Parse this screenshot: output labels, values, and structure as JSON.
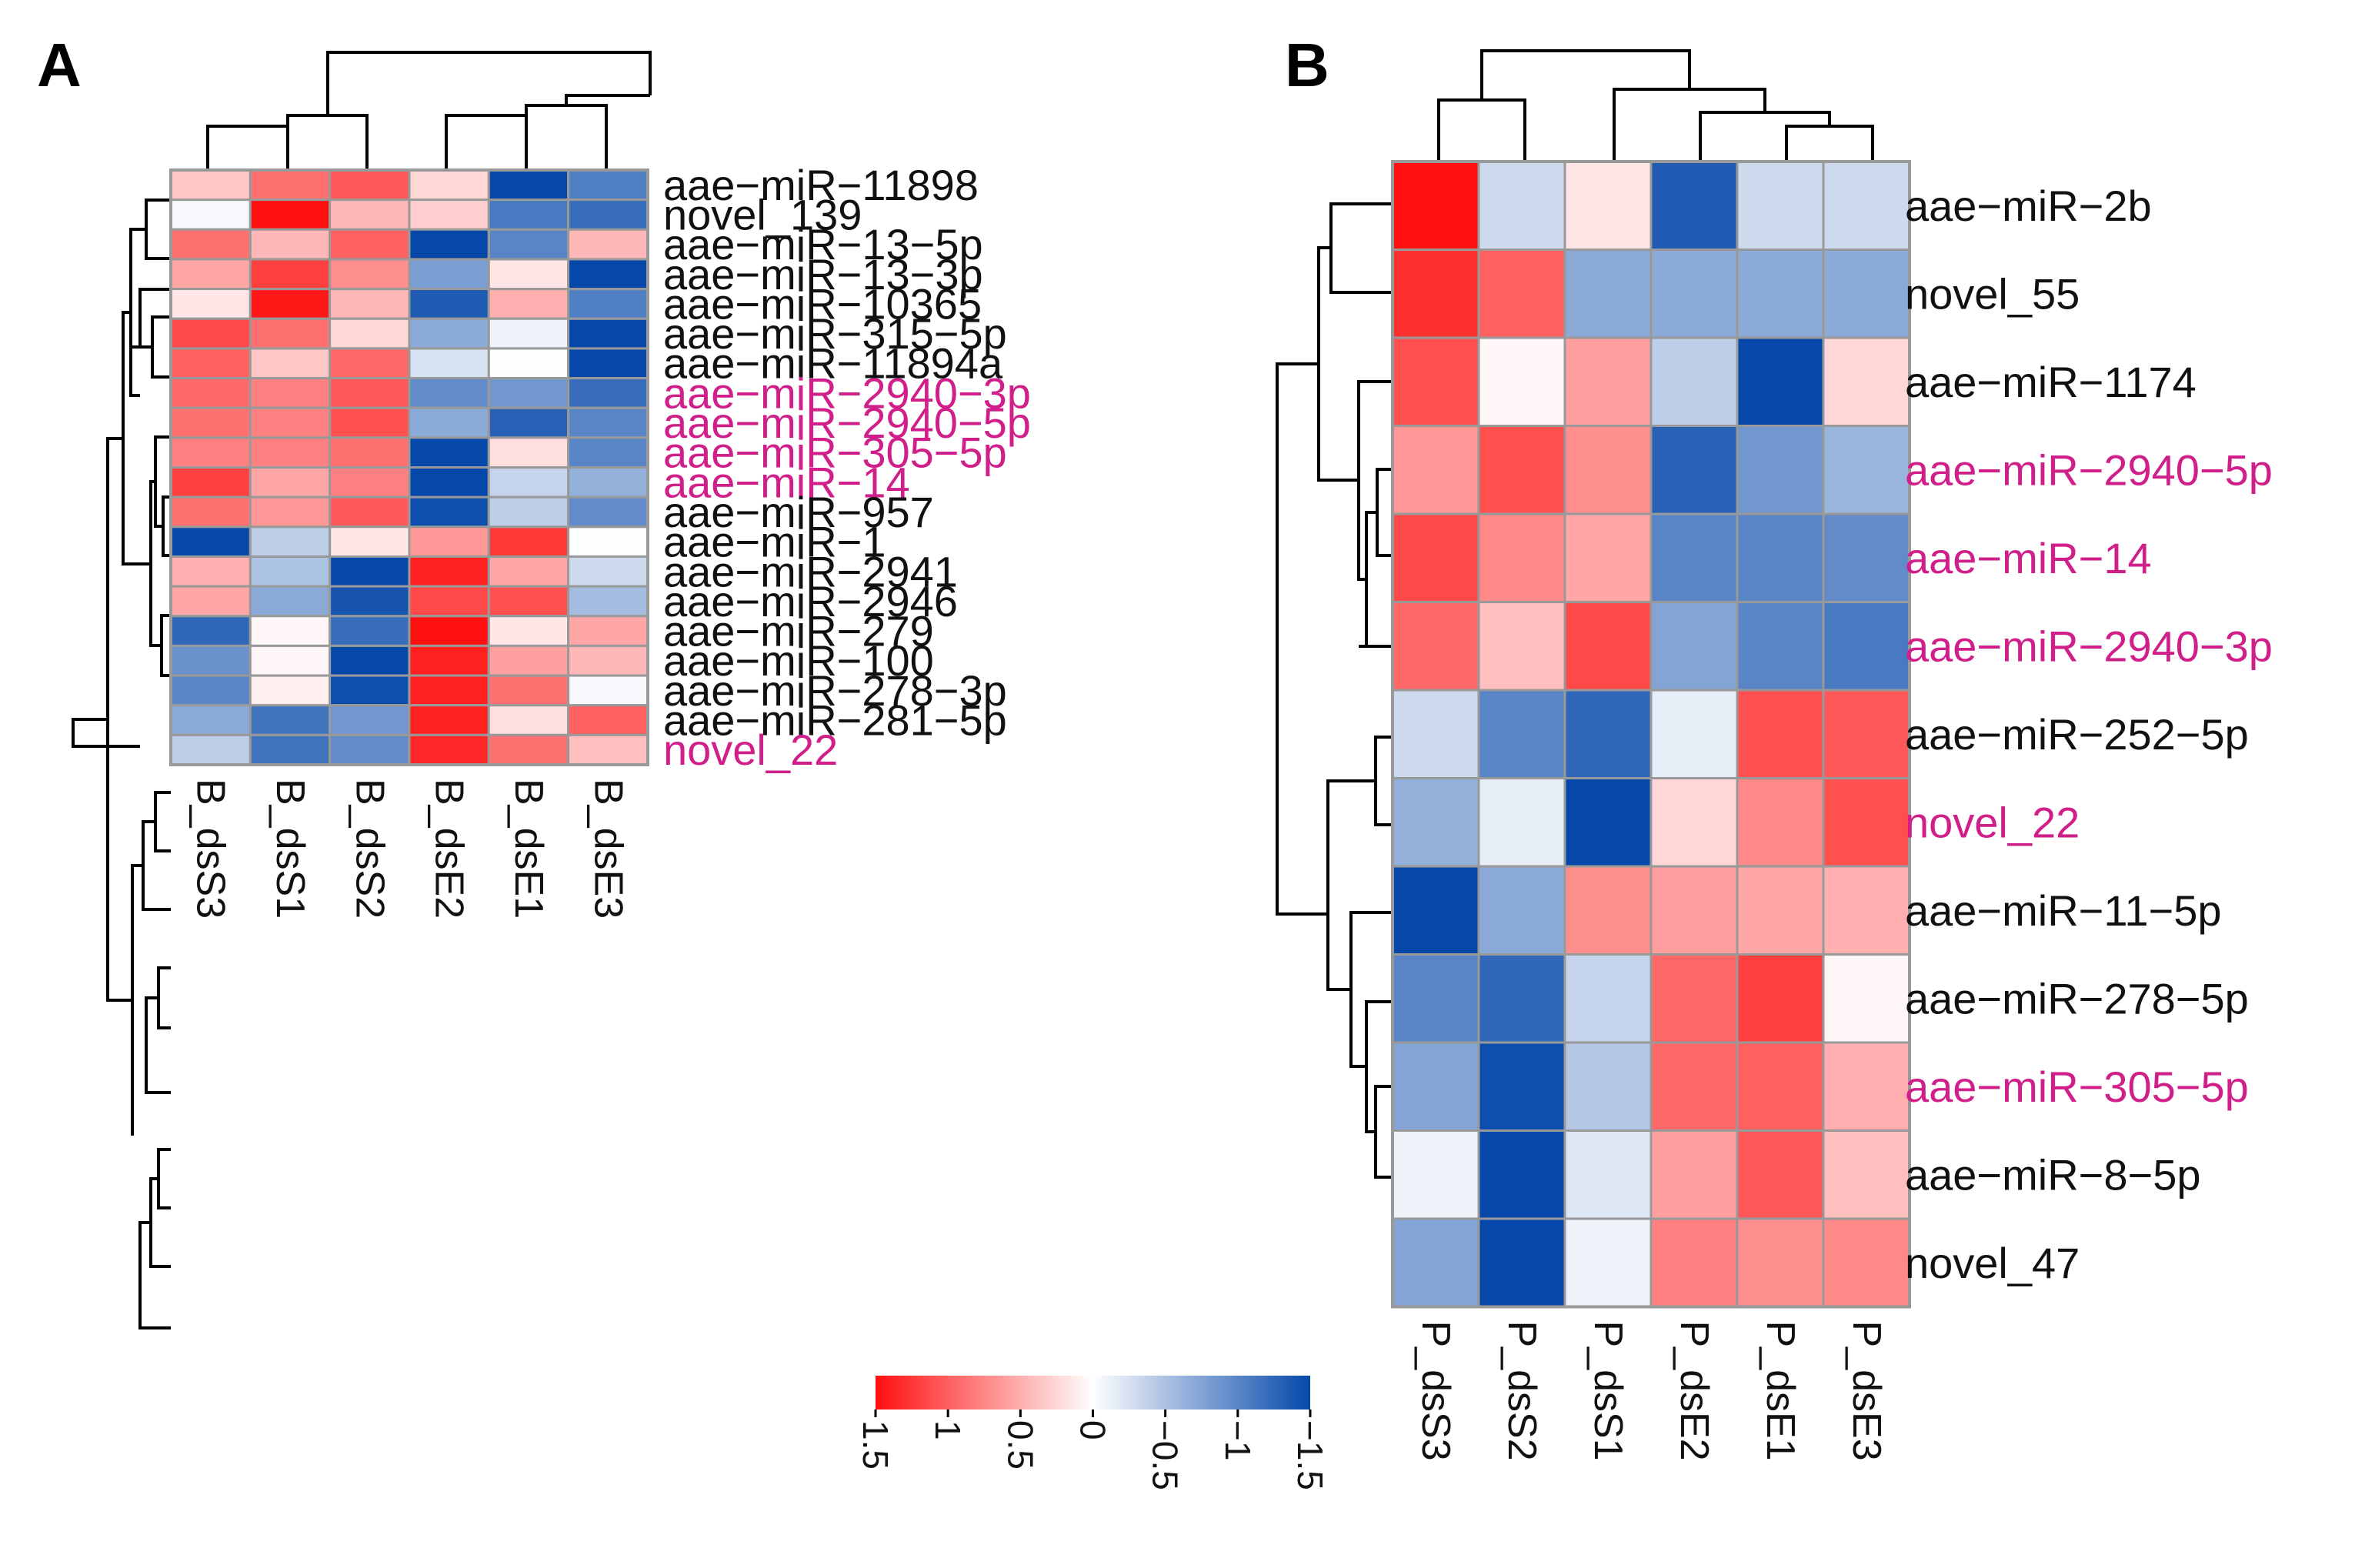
{
  "colors": {
    "high": "#ff1010",
    "mid": "#ffffff",
    "low": "#0648aa",
    "grid": "#999999",
    "highlight_label": "#d01f8a",
    "normal_label": "#111111"
  },
  "colorbar": {
    "range": [
      -1.5,
      1.5
    ],
    "ticks": [
      {
        "value": 1.5,
        "label": "1.5"
      },
      {
        "value": 1,
        "label": "1"
      },
      {
        "value": 0.5,
        "label": "0.5"
      },
      {
        "value": 0,
        "label": "0"
      },
      {
        "value": -0.5,
        "label": "−0.5"
      },
      {
        "value": -1,
        "label": "−1"
      },
      {
        "value": -1.5,
        "label": "−1.5"
      }
    ]
  },
  "chart_data": [
    {
      "type": "heatmap",
      "panel": "A",
      "columns": [
        "B_dsS3",
        "B_dsS1",
        "B_dsS2",
        "B_dsE2",
        "B_dsE1",
        "B_dsE3"
      ],
      "rows": [
        {
          "label": "aae−miR−11898",
          "highlight": false,
          "values": [
            0.35,
            0.9,
            1.05,
            0.25,
            -1.5,
            -1.05
          ]
        },
        {
          "label": "novel_139",
          "highlight": false,
          "values": [
            -0.05,
            1.5,
            0.45,
            0.3,
            -1.1,
            -1.2
          ]
        },
        {
          "label": "aae−miR−13−5p",
          "highlight": false,
          "values": [
            0.9,
            0.45,
            1.0,
            -1.5,
            -1.0,
            0.45
          ]
        },
        {
          "label": "aae−miR−13−3p",
          "highlight": false,
          "values": [
            0.55,
            1.2,
            0.7,
            -0.8,
            0.15,
            -1.5
          ]
        },
        {
          "label": "aae−miR−10365",
          "highlight": false,
          "values": [
            0.15,
            1.45,
            0.45,
            -1.35,
            0.5,
            -1.05
          ]
        },
        {
          "label": "aae−miR−315−5p",
          "highlight": false,
          "values": [
            1.15,
            0.9,
            0.25,
            -0.7,
            -0.1,
            -1.5
          ]
        },
        {
          "label": "aae−miR−11894a",
          "highlight": false,
          "values": [
            1.0,
            0.35,
            0.95,
            -0.25,
            -0.02,
            -1.5
          ]
        },
        {
          "label": "aae−miR−2940−3p",
          "highlight": true,
          "values": [
            0.95,
            0.8,
            1.05,
            -0.95,
            -0.85,
            -1.2
          ]
        },
        {
          "label": "aae−miR−2940−5p",
          "highlight": true,
          "values": [
            0.9,
            0.8,
            1.1,
            -0.7,
            -1.3,
            -1.0
          ]
        },
        {
          "label": "aae−miR−305−5p",
          "highlight": true,
          "values": [
            0.8,
            0.8,
            0.9,
            -1.5,
            0.2,
            -1.0
          ]
        },
        {
          "label": "aae−miR−14",
          "highlight": true,
          "values": [
            1.2,
            0.55,
            0.8,
            -1.5,
            -0.35,
            -0.65
          ]
        },
        {
          "label": "aae−miR−957",
          "highlight": false,
          "values": [
            0.9,
            0.65,
            1.05,
            -1.45,
            -0.4,
            -0.95
          ]
        },
        {
          "label": "aae−miR−1",
          "highlight": false,
          "values": [
            -1.5,
            -0.4,
            0.15,
            0.65,
            1.25,
            -0.02
          ]
        },
        {
          "label": "aae−miR−2941",
          "highlight": false,
          "values": [
            0.5,
            -0.5,
            -1.5,
            1.4,
            0.55,
            -0.3
          ]
        },
        {
          "label": "aae−miR−2946",
          "highlight": false,
          "values": [
            0.55,
            -0.7,
            -1.4,
            1.15,
            1.1,
            -0.55
          ]
        },
        {
          "label": "aae−miR−279",
          "highlight": false,
          "values": [
            -1.25,
            0.05,
            -1.2,
            1.5,
            0.15,
            0.55
          ]
        },
        {
          "label": "aae−miR−100",
          "highlight": false,
          "values": [
            -0.9,
            0.05,
            -1.5,
            1.4,
            0.6,
            0.45
          ]
        },
        {
          "label": "aae−miR−278−3p",
          "highlight": false,
          "values": [
            -1.0,
            0.1,
            -1.45,
            1.4,
            0.9,
            -0.05
          ]
        },
        {
          "label": "aae−miR−281−5p",
          "highlight": false,
          "values": [
            -0.7,
            -1.15,
            -0.85,
            1.4,
            0.2,
            1.0
          ]
        },
        {
          "label": "novel_22",
          "highlight": true,
          "values": [
            -0.4,
            -1.15,
            -0.95,
            1.35,
            0.9,
            0.4
          ]
        }
      ]
    },
    {
      "type": "heatmap",
      "panel": "B",
      "columns": [
        "P_dsS3",
        "P_dsS2",
        "P_dsS1",
        "P_dsE2",
        "P_dsE1",
        "P_dsE3"
      ],
      "rows": [
        {
          "label": "aae−miR−2b",
          "highlight": false,
          "values": [
            1.5,
            -0.3,
            0.15,
            -1.35,
            -0.3,
            -0.3
          ]
        },
        {
          "label": "novel_55",
          "highlight": false,
          "values": [
            1.3,
            1.0,
            -0.7,
            -0.7,
            -0.7,
            -0.7
          ]
        },
        {
          "label": "aae−miR−1174",
          "highlight": false,
          "values": [
            1.1,
            0.05,
            0.6,
            -0.4,
            -1.5,
            0.25
          ]
        },
        {
          "label": "aae−miR−2940−5p",
          "highlight": true,
          "values": [
            0.65,
            1.1,
            0.7,
            -1.3,
            -0.85,
            -0.6
          ]
        },
        {
          "label": "aae−miR−14",
          "highlight": true,
          "values": [
            1.15,
            0.75,
            0.55,
            -1.0,
            -1.0,
            -0.95
          ]
        },
        {
          "label": "aae−miR−2940−3p",
          "highlight": true,
          "values": [
            0.95,
            0.4,
            1.15,
            -0.75,
            -1.0,
            -1.1
          ]
        },
        {
          "label": "aae−miR−252−5p",
          "highlight": false,
          "values": [
            -0.3,
            -1.0,
            -1.25,
            -0.15,
            1.1,
            1.05
          ]
        },
        {
          "label": "novel_22",
          "highlight": true,
          "values": [
            -0.65,
            -0.15,
            -1.5,
            0.25,
            0.75,
            1.1
          ]
        },
        {
          "label": "aae−miR−11−5p",
          "highlight": false,
          "values": [
            -1.5,
            -0.7,
            0.7,
            0.6,
            0.55,
            0.5
          ]
        },
        {
          "label": "aae−miR−278−5p",
          "highlight": false,
          "values": [
            -1.0,
            -1.25,
            -0.35,
            0.95,
            1.2,
            0.05
          ]
        },
        {
          "label": "aae−miR−305−5p",
          "highlight": true,
          "values": [
            -0.75,
            -1.45,
            -0.45,
            0.95,
            1.0,
            0.5
          ]
        },
        {
          "label": "aae−miR−8−5p",
          "highlight": false,
          "values": [
            -0.1,
            -1.5,
            -0.2,
            0.6,
            1.05,
            0.4
          ]
        },
        {
          "label": "novel_47",
          "highlight": false,
          "values": [
            -0.75,
            -1.5,
            -0.1,
            0.8,
            0.7,
            0.75
          ]
        }
      ]
    }
  ]
}
